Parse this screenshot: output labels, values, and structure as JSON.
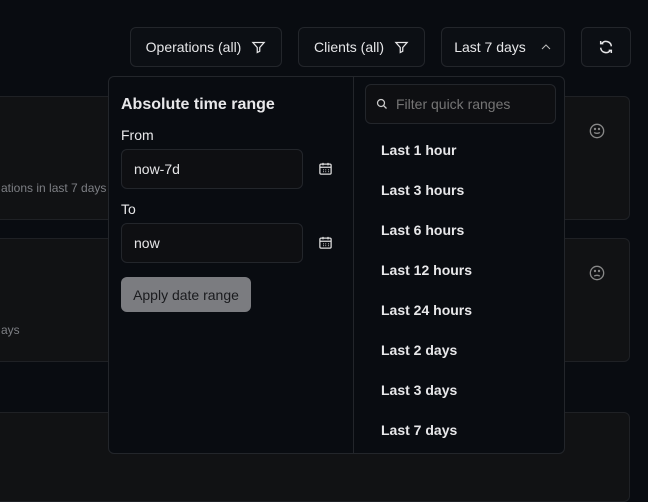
{
  "header": {
    "operations": "Operations (all)",
    "clients": "Clients (all)",
    "range": "Last 7 days"
  },
  "cards": [
    {
      "subtitle": "ations in last 7 days",
      "icon": "smile-icon"
    },
    {
      "subtitle": "ays",
      "icon": "frown-icon"
    }
  ],
  "popover": {
    "title": "Absolute time range",
    "from_label": "From",
    "from_value": "now-7d",
    "to_label": "To",
    "to_value": "now",
    "apply": "Apply date range",
    "search_placeholder": "Filter quick ranges",
    "quick_ranges": [
      "Last 1 hour",
      "Last 3 hours",
      "Last 6 hours",
      "Last 12 hours",
      "Last 24 hours",
      "Last 2 days",
      "Last 3 days",
      "Last 7 days"
    ]
  }
}
